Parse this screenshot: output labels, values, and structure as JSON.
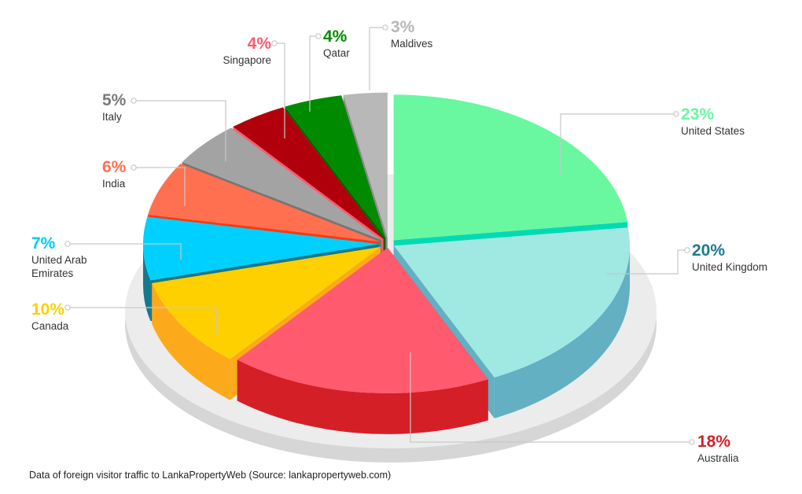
{
  "caption": "Data of foreign visitor traffic to LankaPropertyWeb (Source: lankapropertyweb.com)",
  "chart_data": {
    "type": "pie",
    "style": "3d-exploded",
    "title": "",
    "slices": [
      {
        "label": "United States",
        "label_lines": [
          "United States"
        ],
        "value": 23,
        "value_label": "23%",
        "color": "#69f7a0",
        "side": "#00dbb4",
        "label_color": "#69f7a0"
      },
      {
        "label": "United Kingdom",
        "label_lines": [
          "United Kingdom"
        ],
        "value": 20,
        "value_label": "20%",
        "color": "#a0e8e2",
        "side": "#62b0c2",
        "label_color": "#1a7a8c"
      },
      {
        "label": "Australia",
        "label_lines": [
          "Australia"
        ],
        "value": 18,
        "value_label": "18%",
        "color": "#ff5a6e",
        "side": "#d41f27",
        "label_color": "#d41f27"
      },
      {
        "label": "Canada",
        "label_lines": [
          "Canada"
        ],
        "value": 10,
        "value_label": "10%",
        "color": "#ffd000",
        "side": "#fca91c",
        "label_color": "#ffd000"
      },
      {
        "label": "United Arab Emirates",
        "label_lines": [
          "United Arab",
          "Emirates"
        ],
        "value": 7,
        "value_label": "7%",
        "color": "#00d0ff",
        "side": "#16788a",
        "label_color": "#00ccff"
      },
      {
        "label": "India",
        "label_lines": [
          "India"
        ],
        "value": 6,
        "value_label": "6%",
        "color": "#ff7050",
        "side": "#ff3a10",
        "label_color": "#ff7050"
      },
      {
        "label": "Italy",
        "label_lines": [
          "Italy"
        ],
        "value": 5,
        "value_label": "5%",
        "color": "#a3a3a3",
        "side": "#767676",
        "label_color": "#7a7a7a"
      },
      {
        "label": "Singapore",
        "label_lines": [
          "Singapore"
        ],
        "value": 4,
        "value_label": "4%",
        "color": "#b0000c",
        "side": "#ff5a6e",
        "label_color": "#ff5a6e"
      },
      {
        "label": "Qatar",
        "label_lines": [
          "Qatar"
        ],
        "value": 4,
        "value_label": "4%",
        "color": "#008a00",
        "side": "#006300",
        "label_color": "#008a00"
      },
      {
        "label": "Maldives",
        "label_lines": [
          "Maldives"
        ],
        "value": 3,
        "value_label": "3%",
        "color": "#b8b8b8",
        "side": "#8c8c8c",
        "label_color": "#b8b8b8"
      }
    ]
  }
}
